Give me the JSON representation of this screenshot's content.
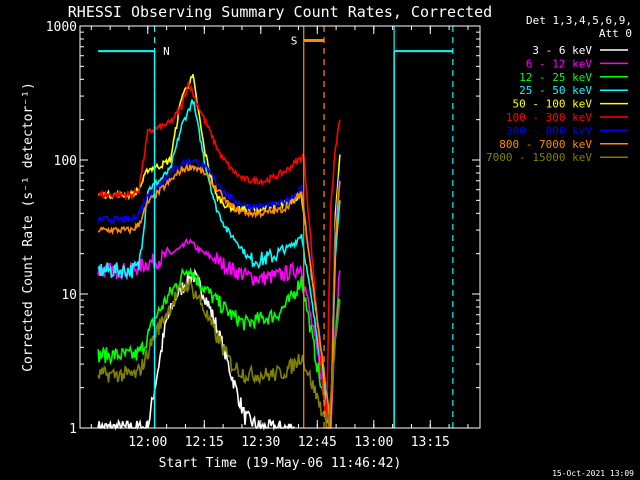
{
  "chart_data": {
    "type": "line",
    "title": "RHESSI Observing Summary Count Rates, Corrected",
    "xlabel": "Start Time (19-May-06 11:46:42)",
    "ylabel": "Corrected Count Rate (s⁻¹ detector⁻¹)",
    "ylog": true,
    "ylim": [
      1,
      1000
    ],
    "xlim_minutes": [
      11.7,
      13.47
    ],
    "x_ticks": [
      "12:00",
      "12:15",
      "12:30",
      "12:45",
      "13:00",
      "13:15"
    ],
    "y_ticks": [
      "1",
      "10",
      "100",
      "1000"
    ],
    "legend_header": [
      "Det 1,3,4,5,6,9,",
      "Att 0"
    ],
    "series": [
      {
        "name": "3 - 6 keV",
        "color": "#ffffff",
        "x": [
          11.78,
          11.97,
          12.0,
          12.08,
          12.13,
          12.2,
          12.25,
          12.3,
          12.37,
          12.43,
          12.5,
          12.55,
          12.58,
          12.62,
          12.65
        ],
        "y": [
          1.0,
          1.0,
          1.0,
          6.0,
          10.0,
          14.0,
          10.0,
          6.0,
          2.5,
          1.2,
          1.0,
          1.0,
          1.0,
          1.0,
          1.0
        ]
      },
      {
        "name": "6 - 12 keV",
        "color": "#ff00ff",
        "x": [
          11.78,
          11.93,
          11.96,
          12.0,
          12.05,
          12.1,
          12.15,
          12.18,
          12.23,
          12.3,
          12.38,
          12.45,
          12.5,
          12.55,
          12.6,
          12.65,
          12.68,
          12.81,
          12.83,
          12.85
        ],
        "y": [
          15.0,
          15.0,
          16.0,
          17.0,
          18.0,
          20.0,
          22.0,
          25.0,
          21.0,
          18.0,
          15.0,
          13.5,
          13.0,
          13.5,
          14.0,
          15.0,
          16.0,
          1.0,
          6.0,
          15.0
        ]
      },
      {
        "name": "12 - 25 keV",
        "color": "#00ff00",
        "x": [
          11.78,
          11.95,
          11.98,
          12.03,
          12.08,
          12.13,
          12.18,
          12.23,
          12.3,
          12.37,
          12.43,
          12.5,
          12.57,
          12.63,
          12.66,
          12.68,
          12.8,
          12.82,
          12.84,
          12.85
        ],
        "y": [
          3.5,
          3.5,
          4.0,
          6.5,
          9.0,
          12.0,
          16.0,
          12.0,
          9.0,
          7.0,
          6.0,
          6.5,
          7.0,
          9.0,
          11.0,
          13.0,
          1.0,
          3.0,
          7.0,
          9.0
        ]
      },
      {
        "name": "25 - 50 keV",
        "color": "#00ffff",
        "x": [
          11.78,
          11.93,
          11.96,
          12.0,
          12.05,
          12.1,
          12.15,
          12.2,
          12.25,
          12.3,
          12.35,
          12.4,
          12.45,
          12.5,
          12.55,
          12.6,
          12.65,
          12.68,
          12.81,
          12.83,
          12.85
        ],
        "y": [
          15.0,
          15.0,
          16.0,
          60.0,
          70.0,
          85.0,
          180.0,
          280.0,
          100.0,
          45.0,
          30.0,
          24.0,
          18.0,
          18.0,
          19.0,
          21.0,
          24.0,
          28.0,
          1.0,
          20.0,
          50.0
        ]
      },
      {
        "name": "50 - 100 keV",
        "color": "#ffff00",
        "x": [
          11.78,
          11.93,
          11.96,
          12.0,
          12.05,
          12.1,
          12.15,
          12.2,
          12.25,
          12.3,
          12.35,
          12.4,
          12.45,
          12.5,
          12.55,
          12.6,
          12.65,
          12.68,
          12.81,
          12.83,
          12.85
        ],
        "y": [
          55.0,
          55.0,
          60.0,
          85.0,
          90.0,
          100.0,
          300.0,
          420.0,
          120.0,
          55.0,
          45.0,
          43.0,
          43.0,
          43.0,
          44.0,
          47.0,
          52.0,
          55.0,
          1.0,
          40.0,
          110.0
        ]
      },
      {
        "name": "100 - 300 keV",
        "color": "#ff0000",
        "x": [
          11.78,
          11.93,
          11.96,
          12.0,
          12.05,
          12.1,
          12.15,
          12.18,
          12.22,
          12.27,
          12.32,
          12.37,
          12.42,
          12.47,
          12.52,
          12.57,
          12.62,
          12.66,
          12.69,
          12.79,
          12.81,
          12.83,
          12.85
        ],
        "y": [
          55.0,
          55.0,
          60.0,
          160.0,
          175.0,
          190.0,
          250.0,
          380.0,
          260.0,
          170.0,
          110.0,
          85.0,
          72.0,
          70.0,
          70.0,
          76.0,
          85.0,
          98.0,
          108.0,
          1.0,
          45.0,
          120.0,
          200.0
        ]
      },
      {
        "name": "300 - 800 keV",
        "color": "#0000ff",
        "x": [
          11.78,
          11.93,
          11.96,
          12.0,
          12.05,
          12.1,
          12.15,
          12.2,
          12.25,
          12.3,
          12.35,
          12.4,
          12.45,
          12.5,
          12.55,
          12.6,
          12.65,
          12.68,
          12.81,
          12.83,
          12.85
        ],
        "y": [
          36.0,
          36.0,
          40.0,
          55.0,
          65.0,
          80.0,
          95.0,
          100.0,
          90.0,
          70.0,
          55.0,
          48.0,
          45.0,
          45.0,
          46.0,
          48.0,
          55.0,
          62.0,
          1.0,
          30.0,
          80.0
        ]
      },
      {
        "name": "800 - 7000 keV",
        "color": "#ff8c00",
        "x": [
          11.78,
          11.93,
          11.96,
          12.0,
          12.05,
          12.1,
          12.15,
          12.2,
          12.25,
          12.3,
          12.35,
          12.4,
          12.45,
          12.5,
          12.55,
          12.6,
          12.65,
          12.68,
          12.81,
          12.83,
          12.85
        ],
        "y": [
          30.0,
          30.0,
          33.0,
          48.0,
          58.0,
          70.0,
          85.0,
          90.0,
          80.0,
          62.0,
          48.0,
          42.0,
          40.0,
          40.0,
          41.0,
          43.0,
          50.0,
          58.0,
          1.0,
          25.0,
          70.0
        ]
      },
      {
        "name": "7000 - 15000 keV",
        "color": "#808000",
        "x": [
          11.78,
          11.95,
          11.98,
          12.03,
          12.08,
          12.13,
          12.18,
          12.23,
          12.3,
          12.37,
          12.43,
          12.5,
          12.55,
          12.6,
          12.65,
          12.68,
          12.8,
          12.82,
          12.84,
          12.85
        ],
        "y": [
          2.5,
          2.5,
          3.0,
          5.0,
          7.0,
          10.0,
          12.0,
          9.0,
          5.0,
          3.0,
          2.5,
          2.5,
          2.5,
          2.6,
          3.0,
          3.5,
          1.0,
          3.0,
          6.0,
          9.0
        ]
      }
    ],
    "attenuator": {
      "color": "#00ffff",
      "level": 650,
      "segments": [
        [
          11.78,
          12.03
        ],
        [
          13.09,
          13.35
        ]
      ],
      "drops": [
        12.03,
        13.09
      ],
      "marker_label": "N",
      "marker_x": 12.05
    },
    "vlines": [
      {
        "x": 12.03,
        "color": "#00ffff",
        "dashed": true
      },
      {
        "x": 12.69,
        "color": "#ff8c00",
        "dashed": false
      },
      {
        "x": 12.78,
        "color": "#ff8c00",
        "dashed": true
      },
      {
        "x": 13.09,
        "color": "#00ffff",
        "dashed": false
      },
      {
        "x": 13.35,
        "color": "#00ffff",
        "dashed": true
      }
    ],
    "saa": {
      "label": "S",
      "color": "#ff8c00",
      "x0": 12.69,
      "x1": 12.78,
      "level": 780
    },
    "grid": false,
    "legend_position": "right"
  },
  "footer": "15-Oct-2021 13:09"
}
